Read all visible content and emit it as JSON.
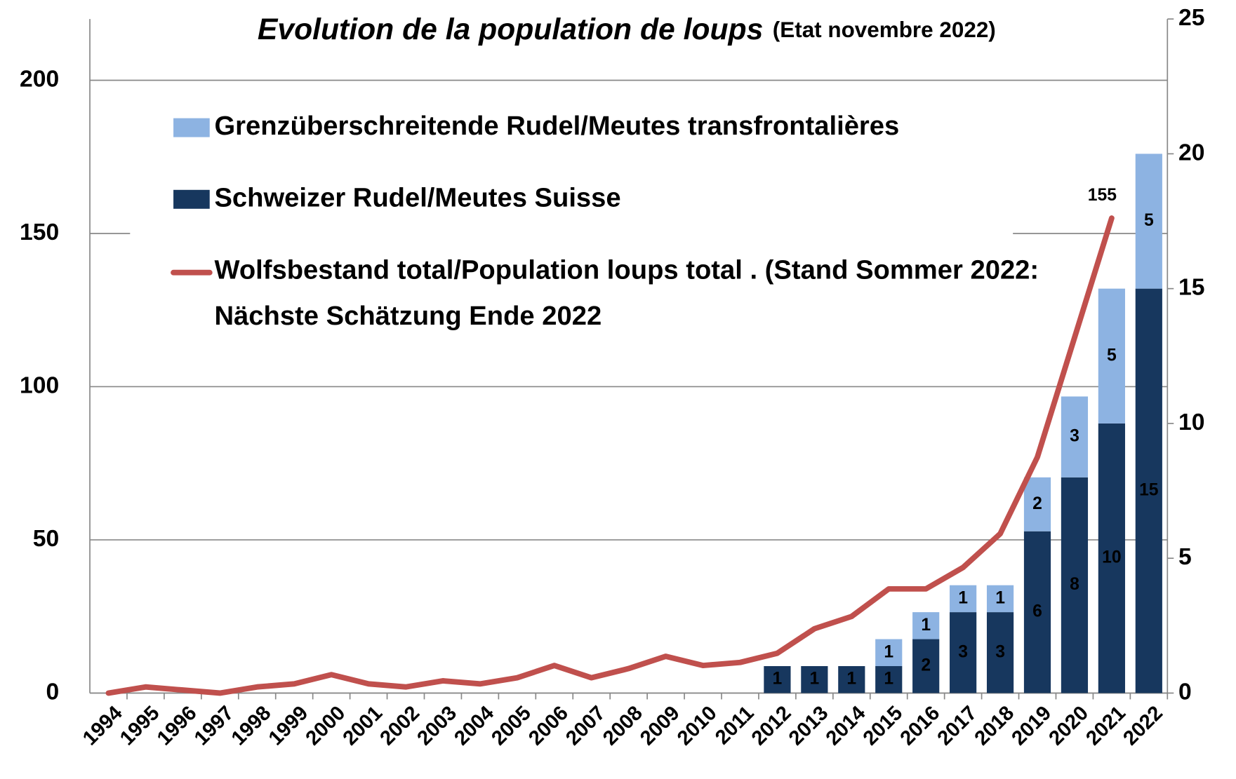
{
  "chart_data": {
    "type": "bar",
    "title": "Evolution de la population de loups",
    "subtitle": "(Etat novembre 2022)",
    "categories": [
      "1994",
      "1995",
      "1996",
      "1997",
      "1998",
      "1999",
      "2000",
      "2001",
      "2002",
      "2003",
      "2004",
      "2005",
      "2006",
      "2007",
      "2008",
      "2009",
      "2010",
      "2011",
      "2012",
      "2013",
      "2014",
      "2015",
      "2016",
      "2017",
      "2018",
      "2019",
      "2020",
      "2021",
      "2022"
    ],
    "series": [
      {
        "name": "Grenzüberschreitende Rudel/Meutes transfrontalières",
        "type": "bar",
        "axis": "y2",
        "color": "#8db3e2",
        "values": [
          null,
          null,
          null,
          null,
          null,
          null,
          null,
          null,
          null,
          null,
          null,
          null,
          null,
          null,
          null,
          null,
          null,
          null,
          null,
          null,
          null,
          1,
          1,
          1,
          1,
          2,
          3,
          5,
          5
        ]
      },
      {
        "name": "Schweizer Rudel/Meutes Suisse",
        "type": "bar",
        "axis": "y2",
        "color": "#17375e",
        "values": [
          null,
          null,
          null,
          null,
          null,
          null,
          null,
          null,
          null,
          null,
          null,
          null,
          null,
          null,
          null,
          null,
          null,
          null,
          1,
          1,
          1,
          1,
          2,
          3,
          3,
          6,
          8,
          10,
          15
        ]
      },
      {
        "name": "Wolfsbestand total/Population loups total . (Stand Sommer 2022: Nächste Schätzung Ende 2022",
        "type": "line",
        "color": "#c0504d",
        "label_last": true,
        "values": [
          0,
          2,
          1,
          0,
          2,
          3,
          6,
          3,
          2,
          4,
          3,
          5,
          9,
          5,
          8,
          12,
          9,
          10,
          13,
          21,
          25,
          34,
          34,
          41,
          52,
          77,
          116,
          155,
          null
        ]
      }
    ],
    "ylim": [
      0,
      220
    ],
    "yticks": [
      0,
      50,
      100,
      150,
      200
    ],
    "y2lim": [
      0,
      25
    ],
    "y2ticks": [
      0,
      5,
      10,
      15,
      20,
      25
    ],
    "grid": true
  }
}
